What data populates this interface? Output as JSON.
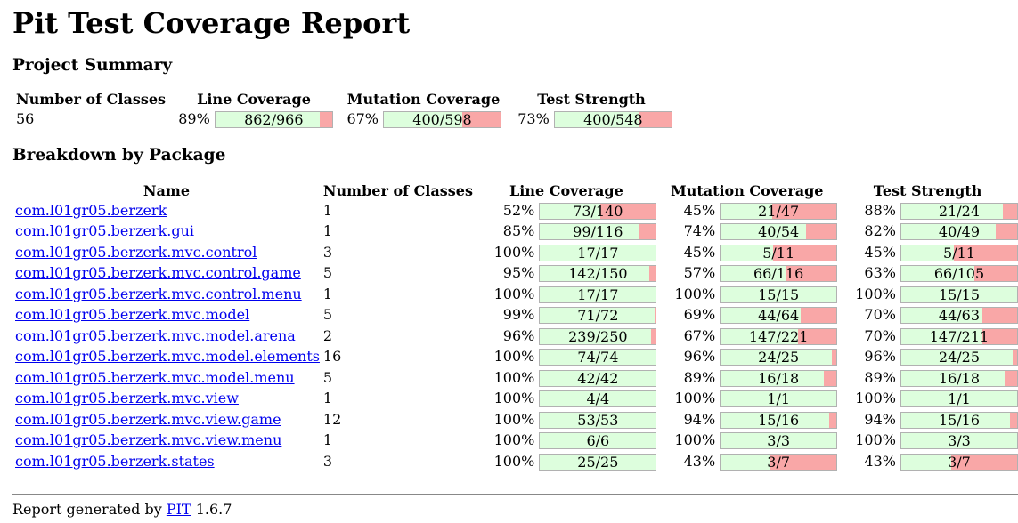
{
  "title": "Pit Test Coverage Report",
  "project_summary": {
    "heading": "Project Summary",
    "headers": {
      "classes": "Number of Classes",
      "line": "Line Coverage",
      "mutation": "Mutation Coverage",
      "strength": "Test Strength"
    },
    "classes": "56",
    "line": {
      "pct": "89%",
      "text": "862/966",
      "fraction": 0.892
    },
    "mutation": {
      "pct": "67%",
      "text": "400/598",
      "fraction": 0.669
    },
    "strength": {
      "pct": "73%",
      "text": "400/548",
      "fraction": 0.73
    }
  },
  "breakdown": {
    "heading": "Breakdown by Package",
    "headers": {
      "name": "Name",
      "classes": "Number of Classes",
      "line": "Line Coverage",
      "mutation": "Mutation Coverage",
      "strength": "Test Strength"
    },
    "rows": [
      {
        "name": "com.l01gr05.berzerk",
        "classes": "1",
        "line": {
          "pct": "52%",
          "text": "73/140",
          "fraction": 0.521
        },
        "mutation": {
          "pct": "45%",
          "text": "21/47",
          "fraction": 0.447
        },
        "strength": {
          "pct": "88%",
          "text": "21/24",
          "fraction": 0.875
        }
      },
      {
        "name": "com.l01gr05.berzerk.gui",
        "classes": "1",
        "line": {
          "pct": "85%",
          "text": "99/116",
          "fraction": 0.853
        },
        "mutation": {
          "pct": "74%",
          "text": "40/54",
          "fraction": 0.741
        },
        "strength": {
          "pct": "82%",
          "text": "40/49",
          "fraction": 0.816
        }
      },
      {
        "name": "com.l01gr05.berzerk.mvc.control",
        "classes": "3",
        "line": {
          "pct": "100%",
          "text": "17/17",
          "fraction": 1.0
        },
        "mutation": {
          "pct": "45%",
          "text": "5/11",
          "fraction": 0.455
        },
        "strength": {
          "pct": "45%",
          "text": "5/11",
          "fraction": 0.455
        }
      },
      {
        "name": "com.l01gr05.berzerk.mvc.control.game",
        "classes": "5",
        "line": {
          "pct": "95%",
          "text": "142/150",
          "fraction": 0.947
        },
        "mutation": {
          "pct": "57%",
          "text": "66/116",
          "fraction": 0.569
        },
        "strength": {
          "pct": "63%",
          "text": "66/105",
          "fraction": 0.629
        }
      },
      {
        "name": "com.l01gr05.berzerk.mvc.control.menu",
        "classes": "1",
        "line": {
          "pct": "100%",
          "text": "17/17",
          "fraction": 1.0
        },
        "mutation": {
          "pct": "100%",
          "text": "15/15",
          "fraction": 1.0
        },
        "strength": {
          "pct": "100%",
          "text": "15/15",
          "fraction": 1.0
        }
      },
      {
        "name": "com.l01gr05.berzerk.mvc.model",
        "classes": "5",
        "line": {
          "pct": "99%",
          "text": "71/72",
          "fraction": 0.986
        },
        "mutation": {
          "pct": "69%",
          "text": "44/64",
          "fraction": 0.688
        },
        "strength": {
          "pct": "70%",
          "text": "44/63",
          "fraction": 0.698
        }
      },
      {
        "name": "com.l01gr05.berzerk.mvc.model.arena",
        "classes": "2",
        "line": {
          "pct": "96%",
          "text": "239/250",
          "fraction": 0.956
        },
        "mutation": {
          "pct": "67%",
          "text": "147/221",
          "fraction": 0.665
        },
        "strength": {
          "pct": "70%",
          "text": "147/211",
          "fraction": 0.697
        }
      },
      {
        "name": "com.l01gr05.berzerk.mvc.model.elements",
        "classes": "16",
        "line": {
          "pct": "100%",
          "text": "74/74",
          "fraction": 1.0
        },
        "mutation": {
          "pct": "96%",
          "text": "24/25",
          "fraction": 0.96
        },
        "strength": {
          "pct": "96%",
          "text": "24/25",
          "fraction": 0.96
        }
      },
      {
        "name": "com.l01gr05.berzerk.mvc.model.menu",
        "classes": "5",
        "line": {
          "pct": "100%",
          "text": "42/42",
          "fraction": 1.0
        },
        "mutation": {
          "pct": "89%",
          "text": "16/18",
          "fraction": 0.889
        },
        "strength": {
          "pct": "89%",
          "text": "16/18",
          "fraction": 0.889
        }
      },
      {
        "name": "com.l01gr05.berzerk.mvc.view",
        "classes": "1",
        "line": {
          "pct": "100%",
          "text": "4/4",
          "fraction": 1.0
        },
        "mutation": {
          "pct": "100%",
          "text": "1/1",
          "fraction": 1.0
        },
        "strength": {
          "pct": "100%",
          "text": "1/1",
          "fraction": 1.0
        }
      },
      {
        "name": "com.l01gr05.berzerk.mvc.view.game",
        "classes": "12",
        "line": {
          "pct": "100%",
          "text": "53/53",
          "fraction": 1.0
        },
        "mutation": {
          "pct": "94%",
          "text": "15/16",
          "fraction": 0.9375
        },
        "strength": {
          "pct": "94%",
          "text": "15/16",
          "fraction": 0.9375
        }
      },
      {
        "name": "com.l01gr05.berzerk.mvc.view.menu",
        "classes": "1",
        "line": {
          "pct": "100%",
          "text": "6/6",
          "fraction": 1.0
        },
        "mutation": {
          "pct": "100%",
          "text": "3/3",
          "fraction": 1.0
        },
        "strength": {
          "pct": "100%",
          "text": "3/3",
          "fraction": 1.0
        }
      },
      {
        "name": "com.l01gr05.berzerk.states",
        "classes": "3",
        "line": {
          "pct": "100%",
          "text": "25/25",
          "fraction": 1.0
        },
        "mutation": {
          "pct": "43%",
          "text": "3/7",
          "fraction": 0.429
        },
        "strength": {
          "pct": "43%",
          "text": "3/7",
          "fraction": 0.429
        }
      }
    ]
  },
  "footer": {
    "prefix": "Report generated by",
    "link": "PIT",
    "version": "1.6.7"
  },
  "colors": {
    "covered": "#ddfedd",
    "uncovered": "#f9a7a7",
    "link": "#0000ee"
  }
}
